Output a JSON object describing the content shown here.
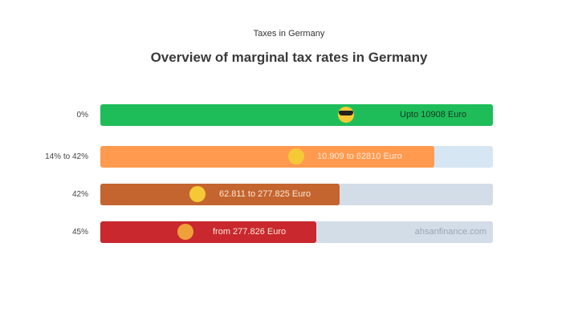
{
  "subtitle": "Taxes in Germany",
  "title": "Overview of marginal tax rates in Germany",
  "watermark": "ahsanfinance.com",
  "chart_data": {
    "type": "bar",
    "orientation": "horizontal",
    "categories": [
      "0%",
      "14% to 42%",
      "42%",
      "45%"
    ],
    "values_percent_of_track": [
      100,
      85,
      61,
      55
    ],
    "bar_labels": [
      "Upto 10908 Euro",
      "10.909 to 62810 Euro",
      "62.811 to 277.825 Euro",
      "from 277.826 Euro"
    ],
    "emoji_icons": [
      "sunglasses-face",
      "expressionless-face",
      "crying-face",
      "angry-face"
    ],
    "colors": [
      "#1ebd5a",
      "#ff9a4f",
      "#c4652f",
      "#c8282e"
    ],
    "track_colors": [
      "#d6e6f3",
      "#d6e6f3",
      "#d3dde8",
      "#d3dde8"
    ],
    "label_colors": [
      "#1a3a22",
      "#fde8d6",
      "#fde8d6",
      "#fde8d6"
    ]
  }
}
